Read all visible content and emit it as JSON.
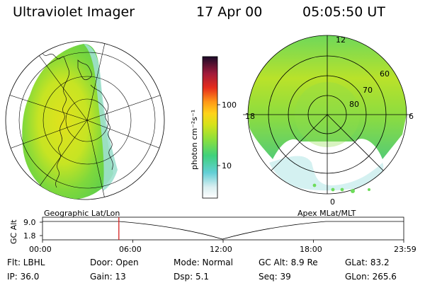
{
  "header": {
    "title": "Ultraviolet Imager",
    "date": "17 Apr 00",
    "time": "05:05:50 UT"
  },
  "colorbar": {
    "unit_label": "photon cm⁻²s⁻¹",
    "ticks": [
      "100",
      "10"
    ]
  },
  "polar": {
    "mlt_labels": [
      "12",
      "18",
      "6",
      "0"
    ],
    "lat_labels": [
      "60",
      "70",
      "80"
    ]
  },
  "maps": {
    "left_label": "Geographic Lat/Lon",
    "right_label": "Apex MLat/MLT"
  },
  "timeline": {
    "y_title": "GC Alt",
    "y_ticks": [
      "9.0",
      "1.8"
    ],
    "x_ticks": [
      "00:00",
      "06:00",
      "12:00",
      "18:00",
      "23:59"
    ],
    "current_time": "05:05:50"
  },
  "info": {
    "flt": "Flt: LBHL",
    "door": "Door: Open",
    "mode": "Mode: Normal",
    "gc_alt": "GC Alt: 8.9 Re",
    "glat": "GLat:  83.2",
    "ip": "IP: 36.0",
    "gain": "Gain: 13",
    "dsp": "Dsp:    5.1",
    "seq": "Seq: 39",
    "glon": "GLon: 265.6"
  },
  "colors": {
    "timeline_marker": "#d42020",
    "aurora_green": "#7ad94a",
    "aurora_yellow": "#d9e01a"
  }
}
